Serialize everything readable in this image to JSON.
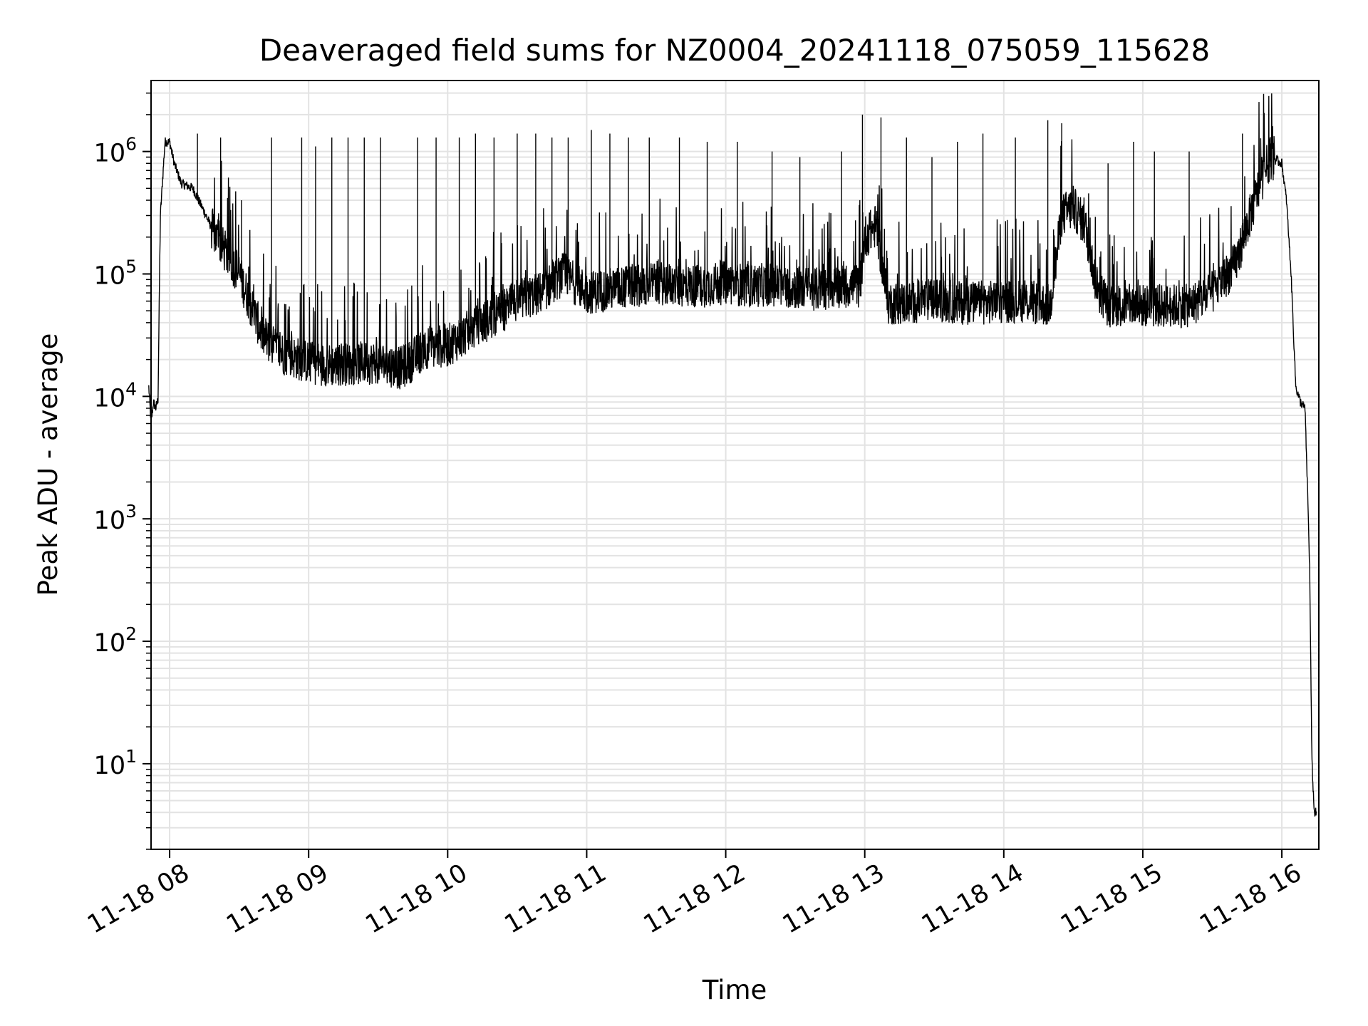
{
  "chart_data": {
    "type": "line",
    "title": "Deaveraged field sums for NZ0004_20241118_075059_115628",
    "xlabel": "Time",
    "ylabel": "Peak ADU - average",
    "yscale": "log",
    "ylim": [
      2,
      3800000
    ],
    "xlim": [
      "2024-11-18 07:51:59",
      "2024-11-18 16:15:58"
    ],
    "x_ticks": [
      "11-18 08",
      "11-18 09",
      "11-18 10",
      "11-18 11",
      "11-18 12",
      "11-18 13",
      "11-18 14",
      "11-18 15",
      "11-18 16"
    ],
    "y_ticks": [
      {
        "base": "10",
        "exp": "1",
        "value": 10
      },
      {
        "base": "10",
        "exp": "2",
        "value": 100
      },
      {
        "base": "10",
        "exp": "3",
        "value": 1000
      },
      {
        "base": "10",
        "exp": "4",
        "value": 10000
      },
      {
        "base": "10",
        "exp": "5",
        "value": 100000
      },
      {
        "base": "10",
        "exp": "6",
        "value": 1000000
      }
    ],
    "grid": true,
    "line_color": "#000000",
    "series": [
      {
        "x": [
          "07:51",
          "07:52",
          "07:53",
          "07:54",
          "07:55",
          "07:56",
          "07:58",
          "08:00",
          "08:02",
          "08:05",
          "08:10",
          "08:15",
          "08:20",
          "08:30",
          "08:40",
          "08:45",
          "08:50",
          "09:00",
          "09:10",
          "09:20",
          "09:30",
          "09:40",
          "09:45",
          "09:50",
          "10:00",
          "10:10",
          "10:20",
          "10:30",
          "10:40",
          "10:50",
          "11:00",
          "11:10",
          "11:20",
          "11:30",
          "11:40",
          "11:50",
          "12:00",
          "12:10",
          "12:20",
          "12:30",
          "12:40",
          "12:50",
          "12:58",
          "13:00",
          "13:05",
          "13:10",
          "13:20",
          "13:30",
          "13:40",
          "13:50",
          "14:00",
          "14:10",
          "14:20",
          "14:25",
          "14:30",
          "14:35",
          "14:40",
          "14:45",
          "14:50",
          "15:00",
          "15:10",
          "15:20",
          "15:30",
          "15:40",
          "15:45",
          "15:50",
          "15:55",
          "16:00",
          "16:02",
          "16:04",
          "16:06",
          "16:08",
          "16:10",
          "16:11",
          "16:12",
          "16:13",
          "16:14",
          "16:15"
        ],
        "y": [
          12000,
          6000,
          9000,
          8000,
          9500,
          300000,
          1200000,
          1200000,
          800000,
          550000,
          500000,
          320000,
          200000,
          100000,
          32000,
          25000,
          22000,
          19000,
          18000,
          18500,
          19000,
          17000,
          20000,
          25000,
          26000,
          35000,
          45000,
          60000,
          70000,
          100000,
          70000,
          75000,
          80000,
          85000,
          80000,
          80000,
          85000,
          80000,
          82000,
          78000,
          75000,
          80000,
          80000,
          200000,
          250000,
          58000,
          58000,
          62000,
          58000,
          58000,
          60000,
          60000,
          55000,
          300000,
          350000,
          250000,
          80000,
          55000,
          55000,
          55000,
          55000,
          55000,
          70000,
          120000,
          250000,
          500000,
          900000,
          800000,
          400000,
          100000,
          12000,
          9000,
          8000,
          2000,
          400,
          10,
          4,
          4
        ],
        "spikes": [
          [
            "08:12",
            1400000
          ],
          [
            "08:22",
            1300000
          ],
          [
            "08:31",
            400000
          ],
          [
            "08:44",
            1300000
          ],
          [
            "08:57",
            1300000
          ],
          [
            "09:03",
            1100000
          ],
          [
            "09:10",
            1300000
          ],
          [
            "09:17",
            1300000
          ],
          [
            "09:24",
            1300000
          ],
          [
            "09:31",
            1300000
          ],
          [
            "09:47",
            1300000
          ],
          [
            "09:55",
            1300000
          ],
          [
            "10:05",
            1300000
          ],
          [
            "10:12",
            1400000
          ],
          [
            "10:20",
            1300000
          ],
          [
            "10:30",
            1400000
          ],
          [
            "10:38",
            1400000
          ],
          [
            "10:45",
            1300000
          ],
          [
            "10:52",
            1300000
          ],
          [
            "11:02",
            1500000
          ],
          [
            "11:10",
            1400000
          ],
          [
            "11:18",
            1300000
          ],
          [
            "11:27",
            1300000
          ],
          [
            "11:40",
            1300000
          ],
          [
            "11:52",
            1200000
          ],
          [
            "12:05",
            1200000
          ],
          [
            "12:20",
            1000000
          ],
          [
            "12:32",
            900000
          ],
          [
            "12:50",
            1000000
          ],
          [
            "12:59",
            2000000
          ],
          [
            "13:07",
            1900000
          ],
          [
            "13:18",
            1300000
          ],
          [
            "13:29",
            900000
          ],
          [
            "13:40",
            1200000
          ],
          [
            "13:51",
            1400000
          ],
          [
            "14:05",
            1300000
          ],
          [
            "14:19",
            1800000
          ],
          [
            "14:25",
            1700000
          ],
          [
            "14:45",
            800000
          ],
          [
            "14:56",
            1200000
          ],
          [
            "15:05",
            1000000
          ],
          [
            "15:20",
            1000000
          ],
          [
            "15:43",
            1400000
          ]
        ]
      }
    ]
  }
}
